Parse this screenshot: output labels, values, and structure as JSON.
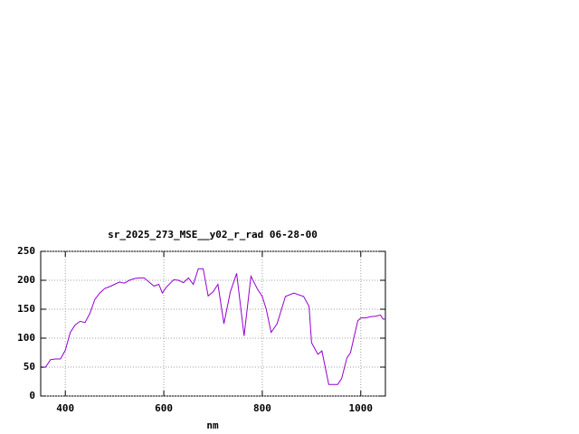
{
  "chart_data": {
    "type": "line",
    "title": "sr_2025_273_MSE__y02_r_rad 06-28-00",
    "x_label": "nm",
    "x": [
      350,
      360,
      370,
      380,
      390,
      400,
      410,
      420,
      430,
      440,
      450,
      460,
      470,
      480,
      490,
      500,
      510,
      520,
      530,
      540,
      550,
      560,
      570,
      580,
      590,
      597,
      605,
      620,
      630,
      640,
      650,
      660,
      670,
      680,
      690,
      700,
      710,
      722,
      735,
      748,
      763,
      777,
      790,
      800,
      808,
      818,
      830,
      847,
      864,
      884,
      895,
      900,
      913,
      921,
      935,
      953,
      961,
      972,
      979,
      994,
      1000,
      1010,
      1020,
      1030,
      1040,
      1045,
      1050
    ],
    "series": [
      {
        "name": "sr_2025_273_MSE__y02_r_rad",
        "color": "#9400d3",
        "values": [
          49,
          50,
          63,
          64,
          64,
          79,
          110,
          123,
          129,
          127,
          143,
          167,
          178,
          186,
          189,
          193,
          197,
          195,
          200,
          203,
          204,
          204,
          197,
          190,
          193,
          178,
          188,
          201,
          200,
          196,
          204,
          193,
          220,
          220,
          173,
          180,
          193,
          125,
          180,
          212,
          104,
          207,
          185,
          172,
          150,
          110,
          125,
          172,
          178,
          172,
          155,
          92,
          72,
          78,
          20,
          20,
          30,
          66,
          75,
          130,
          135,
          135,
          137,
          138,
          140,
          133,
          133
        ]
      }
    ],
    "xlim": [
      350,
      1050
    ],
    "ylim": [
      0,
      250
    ],
    "xticks": [
      400,
      600,
      800,
      1000
    ],
    "yticks": [
      0,
      50,
      100,
      150,
      200,
      250
    ],
    "grid": true
  }
}
